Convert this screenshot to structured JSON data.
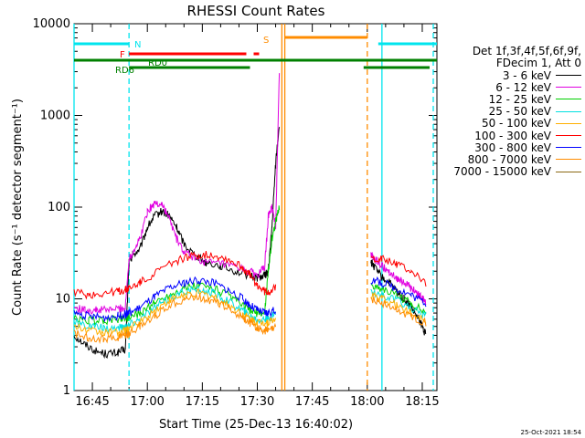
{
  "chart_data": {
    "type": "line",
    "title": "RHESSI Count Rates",
    "xlabel": "Start Time (25-Dec-13 16:40:02)",
    "ylabel": "Count Rate (s⁻¹ detector segment⁻¹)",
    "yscale": "log",
    "ylim": [
      1,
      10000
    ],
    "y_ticks": [
      {
        "label": "1",
        "value": 1
      },
      {
        "label": "10",
        "value": 10
      },
      {
        "label": "100",
        "value": 100
      },
      {
        "label": "1000",
        "value": 1000
      },
      {
        "label": "10000",
        "value": 10000
      }
    ],
    "x_ticks": [
      "16:45",
      "17:00",
      "17:15",
      "17:30",
      "17:45",
      "18:00",
      "18:15"
    ],
    "x_range_minutes": [
      0,
      99
    ],
    "tick_minutes": [
      5,
      20,
      35,
      50,
      65,
      80,
      95
    ],
    "legend_title": [
      "Det 1f,3f,4f,5f,6f,9f,",
      "FDecim 1, Att 0"
    ],
    "legend_position": "right",
    "series": [
      {
        "name": "3 - 6 keV",
        "color": "#000000",
        "x": [
          0,
          3,
          6,
          9,
          12,
          14,
          15,
          16,
          18,
          20,
          22,
          24,
          26,
          28,
          30,
          33,
          36,
          40,
          44,
          48,
          50,
          52,
          53,
          54,
          55,
          56,
          57,
          58,
          59,
          80,
          81,
          82,
          84,
          86,
          88,
          90,
          92,
          94,
          95,
          96
        ],
        "y": [
          4,
          3.2,
          2.7,
          2.5,
          2.6,
          2.8,
          25,
          30,
          35,
          60,
          80,
          90,
          80,
          60,
          40,
          30,
          25,
          23,
          20,
          18,
          17,
          18,
          20,
          60,
          300,
          800,
          null,
          null,
          null,
          null,
          25,
          22,
          17,
          15,
          12,
          10,
          8,
          6,
          5,
          4
        ]
      },
      {
        "name": "6 - 12 keV",
        "color": "#e000e0",
        "x": [
          0,
          3,
          6,
          9,
          12,
          14,
          15,
          16,
          18,
          20,
          22,
          24,
          26,
          28,
          30,
          33,
          36,
          40,
          44,
          48,
          50,
          52,
          53,
          54,
          55,
          56,
          57,
          58,
          59,
          80,
          81,
          82,
          84,
          86,
          88,
          90,
          92,
          94,
          95,
          96
        ],
        "y": [
          8,
          7.5,
          7.5,
          7.6,
          7.8,
          8,
          28,
          32,
          45,
          90,
          110,
          108,
          75,
          45,
          32,
          28,
          25,
          24,
          22,
          20,
          18,
          22,
          80,
          100,
          60,
          3000,
          null,
          null,
          null,
          null,
          30,
          27,
          23,
          20,
          17,
          15,
          13,
          11,
          10,
          9
        ]
      },
      {
        "name": "12 - 25 keV",
        "color": "#00d000",
        "x": [
          0,
          4,
          8,
          12,
          14,
          15,
          18,
          22,
          26,
          30,
          34,
          38,
          42,
          46,
          48,
          50,
          52,
          53,
          54,
          55,
          56,
          57,
          58,
          59,
          80,
          81,
          84,
          88,
          92,
          96
        ],
        "y": [
          6,
          5.8,
          5.8,
          6,
          6.2,
          6.4,
          7,
          9,
          11,
          13,
          14,
          13,
          11,
          8.5,
          7.5,
          7,
          7,
          20,
          45,
          70,
          100,
          null,
          null,
          null,
          null,
          14,
          13,
          11,
          9,
          7
        ]
      },
      {
        "name": "25 - 50 keV",
        "color": "#00e0e0",
        "x": [
          0,
          4,
          8,
          12,
          14,
          15,
          18,
          22,
          26,
          30,
          34,
          38,
          42,
          46,
          48,
          50,
          52,
          53,
          55,
          56,
          57,
          58,
          59,
          80,
          81,
          84,
          88,
          92,
          96
        ],
        "y": [
          5.5,
          5,
          4.8,
          4.8,
          5,
          5.2,
          6,
          8,
          10,
          12,
          12.5,
          11.5,
          9.5,
          7.5,
          6.5,
          6,
          6,
          6,
          7,
          null,
          null,
          null,
          null,
          null,
          12,
          11,
          9.5,
          8,
          6.5
        ]
      },
      {
        "name": "50 - 100 keV",
        "color": "#ffb000",
        "x": [
          0,
          4,
          8,
          12,
          14,
          15,
          18,
          22,
          26,
          30,
          34,
          38,
          42,
          46,
          48,
          50,
          52,
          53,
          55,
          56,
          57,
          58,
          59,
          80,
          81,
          84,
          88,
          92,
          96
        ],
        "y": [
          5,
          4.5,
          4.3,
          4.3,
          4.5,
          4.8,
          5.5,
          7.5,
          9.5,
          11,
          11.5,
          10.5,
          8.5,
          6.8,
          6,
          5.5,
          5.5,
          5.5,
          6,
          null,
          null,
          null,
          null,
          null,
          11,
          10,
          8.5,
          7,
          6
        ]
      },
      {
        "name": "100 - 300 keV",
        "color": "#ff0000",
        "x": [
          0,
          4,
          8,
          12,
          14,
          15,
          18,
          22,
          26,
          30,
          34,
          38,
          42,
          46,
          48,
          50,
          52,
          53,
          55,
          56,
          57,
          58,
          59,
          80,
          81,
          84,
          88,
          92,
          96
        ],
        "y": [
          12,
          11,
          11.5,
          12,
          12.5,
          13,
          15,
          19,
          24,
          28,
          30,
          30,
          27,
          22,
          18,
          14,
          12,
          12,
          13,
          null,
          null,
          null,
          null,
          null,
          28,
          27,
          24,
          20,
          15
        ]
      },
      {
        "name": "300 - 800 keV",
        "color": "#0000ff",
        "x": [
          0,
          4,
          8,
          12,
          14,
          15,
          18,
          22,
          26,
          30,
          34,
          38,
          42,
          46,
          48,
          50,
          52,
          53,
          55,
          56,
          57,
          58,
          59,
          80,
          81,
          84,
          88,
          92,
          96
        ],
        "y": [
          7,
          6.5,
          6.3,
          6.5,
          6.8,
          7,
          8,
          10.5,
          13,
          15,
          16,
          15,
          12.5,
          10,
          8.5,
          7.5,
          7,
          7,
          7.5,
          null,
          null,
          null,
          null,
          null,
          16,
          15,
          13,
          11,
          9
        ]
      },
      {
        "name": "800 - 7000 keV",
        "color": "#ff8c00",
        "x": [
          0,
          4,
          8,
          12,
          14,
          15,
          18,
          22,
          26,
          30,
          34,
          38,
          42,
          46,
          48,
          50,
          52,
          53,
          55,
          56,
          57,
          58,
          59,
          80,
          81,
          84,
          88,
          92,
          96
        ],
        "y": [
          4.2,
          3.8,
          3.7,
          3.8,
          4,
          4.2,
          5,
          6.5,
          8.5,
          10,
          10.5,
          9.5,
          8,
          6.3,
          5.5,
          4.8,
          4.5,
          4.5,
          4.8,
          null,
          null,
          null,
          null,
          null,
          10,
          9,
          7.5,
          6.5,
          5.5
        ]
      },
      {
        "name": "7000 - 15000 keV",
        "color": "#8b6914",
        "x": [],
        "y": []
      }
    ],
    "flags": [
      {
        "label": "N",
        "color": "#00e5ee",
        "segments": [
          [
            0,
            15
          ],
          [
            83,
            99
          ]
        ]
      },
      {
        "label": "F",
        "color": "#ff0000",
        "segments": [
          [
            15,
            47
          ],
          [
            49,
            50.5
          ]
        ]
      },
      {
        "label": "RD0",
        "color": "#008000",
        "segments": [
          [
            0,
            99
          ]
        ]
      },
      {
        "label": "RD6",
        "color": "#008000",
        "segments": [
          [
            15,
            48
          ],
          [
            79,
            97
          ]
        ]
      },
      {
        "label": "S",
        "color": "#ff8c00",
        "segments": [
          [
            57.5,
            80
          ]
        ]
      }
    ],
    "vertical_markers": [
      {
        "x": 0,
        "color": "#00e5ee",
        "style": "solid"
      },
      {
        "x": 15,
        "color": "#00e5ee",
        "style": "dashed"
      },
      {
        "x": 56.7,
        "color": "#ff8c00",
        "style": "solid"
      },
      {
        "x": 57.5,
        "color": "#ff8c00",
        "style": "solid"
      },
      {
        "x": 80,
        "color": "#ff8c00",
        "style": "dashed"
      },
      {
        "x": 84,
        "color": "#00e5ee",
        "style": "solid"
      },
      {
        "x": 98,
        "color": "#00e5ee",
        "style": "dashed"
      }
    ]
  },
  "footer_timestamp": "25-Oct-2021 18:54"
}
